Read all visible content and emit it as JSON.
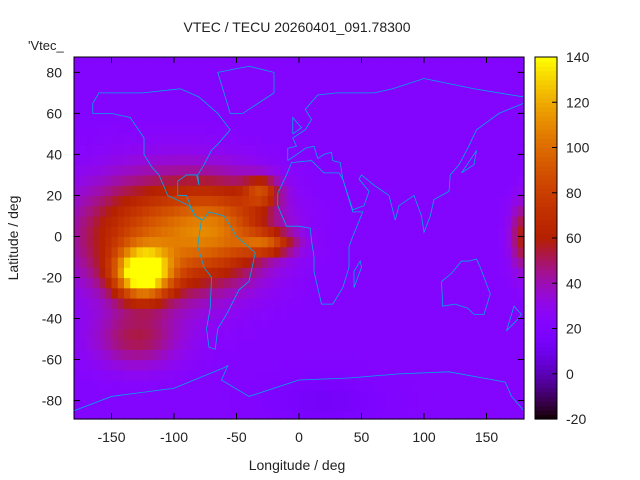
{
  "chart_data": {
    "type": "heatmap",
    "title": "VTEC / TECU 20260401_091.78300",
    "xlabel": "Longitude / deg",
    "ylabel": "Latitude / deg",
    "corner_label": "'Vtec_",
    "xlim": [
      -180,
      180
    ],
    "ylim": [
      -89,
      87.5
    ],
    "xticks": [
      -150,
      -100,
      -50,
      0,
      50,
      100,
      150
    ],
    "yticks": [
      80,
      60,
      40,
      20,
      0,
      -20,
      -40,
      -60,
      -80
    ],
    "colorbar": {
      "range": [
        -20,
        140
      ],
      "ticks": [
        140,
        120,
        100,
        80,
        60,
        40,
        20,
        0,
        -20
      ],
      "palette": "black-purple-red-orange-yellow"
    },
    "grid_resolution_deg": 5,
    "background_value": 22,
    "features": [
      {
        "name": "peak",
        "lon": -125,
        "lat": -18,
        "amplitude": 110,
        "spread_lon": 15,
        "spread_lat": 8
      },
      {
        "name": "pacific-crest",
        "lon": -110,
        "lat": 0,
        "amplitude": 68,
        "spread_lon": 45,
        "spread_lat": 20
      },
      {
        "name": "south-america",
        "lon": -60,
        "lat": 5,
        "amplitude": 45,
        "spread_lon": 28,
        "spread_lat": 15
      },
      {
        "name": "atlantic-north-tongue",
        "lon": -30,
        "lat": 22,
        "amplitude": 45,
        "spread_lon": 10,
        "spread_lat": 5
      },
      {
        "name": "atlantic-equator-tongue",
        "lon": -25,
        "lat": -3,
        "amplitude": 45,
        "spread_lon": 15,
        "spread_lat": 4
      },
      {
        "name": "dateline-east",
        "lon": 180,
        "lat": 0,
        "amplitude": 38,
        "spread_lon": 8,
        "spread_lat": 12
      },
      {
        "name": "south-pacific",
        "lon": -130,
        "lat": -50,
        "amplitude": 28,
        "spread_lon": 25,
        "spread_lat": 10
      },
      {
        "name": "antarctic-low",
        "lon": 20,
        "lat": -80,
        "amplitude": -8,
        "spread_lon": 30,
        "spread_lat": 8
      }
    ]
  }
}
